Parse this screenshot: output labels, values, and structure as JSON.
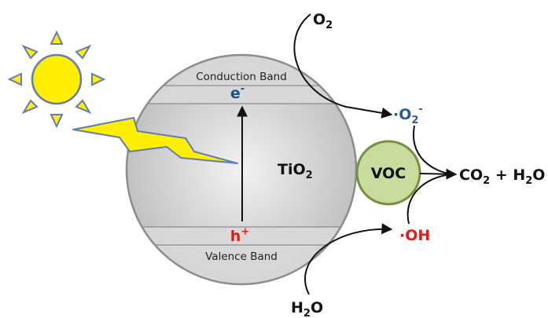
{
  "bands": {
    "conduction": "Conduction Band",
    "valence": "Valence Band"
  },
  "particle": {
    "base": "TiO",
    "subscript": "2"
  },
  "electron": {
    "base": "e",
    "sup": "-"
  },
  "hole": {
    "base": "h",
    "sup": "+"
  },
  "oxygen_in": {
    "base": "O",
    "subscript": "2"
  },
  "superoxide": {
    "prefix": "·",
    "base": "O",
    "subscript": "2",
    "sup": "-"
  },
  "voc": {
    "label": "VOC"
  },
  "water_in": {
    "base": "H",
    "subscript": "2",
    "tail": "O"
  },
  "hydroxyl": {
    "prefix": "·",
    "base": "OH"
  },
  "products": {
    "co2_base": "CO",
    "co2_sub": "2",
    "plus": " + ",
    "h2o_base": "H",
    "h2o_sub": "2",
    "h2o_tail": "O"
  },
  "colors": {
    "sun_fill": "#ffee00",
    "sun_stroke": "#5f7db6",
    "bolt_fill": "#ffee00",
    "bolt_stroke": "#5f7db6",
    "sphere_light": "#f2f2f2",
    "sphere_dark": "#bdbdbd",
    "sphere_stroke": "#8c8c8c",
    "electron": "#1f4e8c",
    "hole": "#e21b1b",
    "superoxide": "#2a5a9a",
    "hydroxyl": "#e21b1b",
    "voc_fill": "#c8dc9e",
    "voc_stroke": "#74923e"
  }
}
